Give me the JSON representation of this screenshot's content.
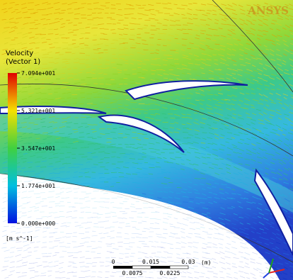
{
  "brand": "ANSYS",
  "legend": {
    "title": "Velocity",
    "subtitle": "(Vector 1)",
    "labels": [
      "7.094e+001",
      "5.321e+001",
      "3.547e+001",
      "1.774e+001",
      "0.000e+000"
    ],
    "unit": "[m s^-1]"
  },
  "scale_bar": {
    "top_labels": [
      "0",
      "0.015",
      "0.03"
    ],
    "unit": "(m)",
    "bottom_labels": [
      "0.0075",
      "0.0225"
    ]
  }
}
